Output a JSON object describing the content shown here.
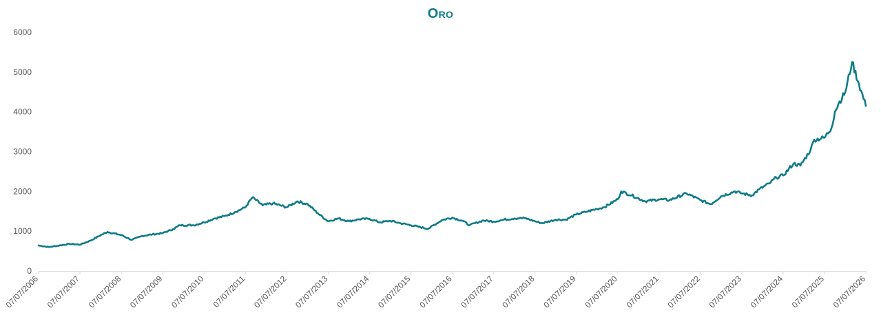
{
  "chart_data": {
    "type": "line",
    "title": "Oro",
    "xlabel": "",
    "ylabel": "",
    "ylim": [
      0,
      6000
    ],
    "yticks": [
      0,
      1000,
      2000,
      3000,
      4000,
      5000,
      6000
    ],
    "xticks": [
      "07/07/2006",
      "07/07/2007",
      "07/07/2008",
      "07/07/2009",
      "07/07/2010",
      "07/07/2011",
      "07/07/2012",
      "07/07/2013",
      "07/07/2014",
      "07/07/2015",
      "07/07/2016",
      "07/07/2017",
      "07/07/2018",
      "07/07/2019",
      "07/07/2020",
      "07/07/2021",
      "07/07/2022",
      "07/07/2023",
      "07/07/2024",
      "07/07/2025",
      "07/07/2026"
    ],
    "xlim": [
      "07/07/2006",
      "07/07/2026"
    ],
    "grid": false,
    "legend": "none",
    "line_color": "#0e7b87",
    "title_color": "#0e7b87",
    "series": [
      {
        "x": [
          "07/07/2006",
          "10/07/2006",
          "01/07/2007",
          "04/07/2007",
          "07/07/2007",
          "10/07/2007",
          "01/07/2008",
          "03/07/2008",
          "07/07/2008",
          "10/07/2008",
          "01/07/2009",
          "04/07/2009",
          "07/07/2009",
          "10/07/2009",
          "12/07/2009",
          "04/07/2010",
          "07/07/2010",
          "10/07/2010",
          "01/07/2011",
          "04/07/2011",
          "07/07/2011",
          "09/07/2011",
          "12/07/2011",
          "03/07/2012",
          "07/07/2012",
          "10/07/2012",
          "01/07/2013",
          "04/07/2013",
          "07/07/2013",
          "10/07/2013",
          "01/07/2014",
          "04/07/2014",
          "07/07/2014",
          "10/07/2014",
          "01/07/2015",
          "04/07/2015",
          "07/07/2015",
          "12/07/2015",
          "04/07/2016",
          "07/07/2016",
          "10/07/2016",
          "12/07/2016",
          "04/07/2017",
          "07/07/2017",
          "10/07/2017",
          "01/07/2018",
          "04/07/2018",
          "07/07/2018",
          "09/07/2018",
          "01/07/2019",
          "04/07/2019",
          "07/07/2019",
          "10/07/2019",
          "01/07/2020",
          "03/07/2020",
          "07/07/2020",
          "08/07/2020",
          "11/07/2020",
          "03/07/2021",
          "07/07/2021",
          "10/07/2021",
          "03/07/2022",
          "07/07/2022",
          "10/07/2022",
          "01/07/2023",
          "05/07/2023",
          "07/07/2023",
          "10/07/2023",
          "12/07/2023",
          "03/07/2024",
          "05/07/2024",
          "07/07/2024",
          "10/07/2024",
          "12/07/2024",
          "03/07/2025",
          "04/07/2025",
          "07/07/2025",
          "09/07/2025",
          "10/07/2025",
          "11/07/2025",
          "01/07/2026",
          "03/07/2026",
          "05/07/2026",
          "07/07/2026"
        ],
        "values": [
          640,
          600,
          640,
          680,
          660,
          760,
          900,
          980,
          900,
          780,
          880,
          920,
          950,
          1050,
          1150,
          1150,
          1220,
          1320,
          1380,
          1480,
          1600,
          1850,
          1650,
          1700,
          1600,
          1750,
          1680,
          1450,
          1250,
          1320,
          1250,
          1300,
          1310,
          1220,
          1260,
          1200,
          1150,
          1060,
          1280,
          1340,
          1260,
          1150,
          1270,
          1240,
          1290,
          1320,
          1330,
          1250,
          1200,
          1290,
          1290,
          1420,
          1490,
          1560,
          1600,
          1800,
          2000,
          1900,
          1750,
          1800,
          1780,
          1950,
          1780,
          1680,
          1880,
          2000,
          1950,
          1900,
          2050,
          2200,
          2350,
          2400,
          2700,
          2650,
          3050,
          3300,
          3350,
          3600,
          4000,
          4200,
          4500,
          5250,
          4700,
          4150
        ]
      }
    ]
  }
}
